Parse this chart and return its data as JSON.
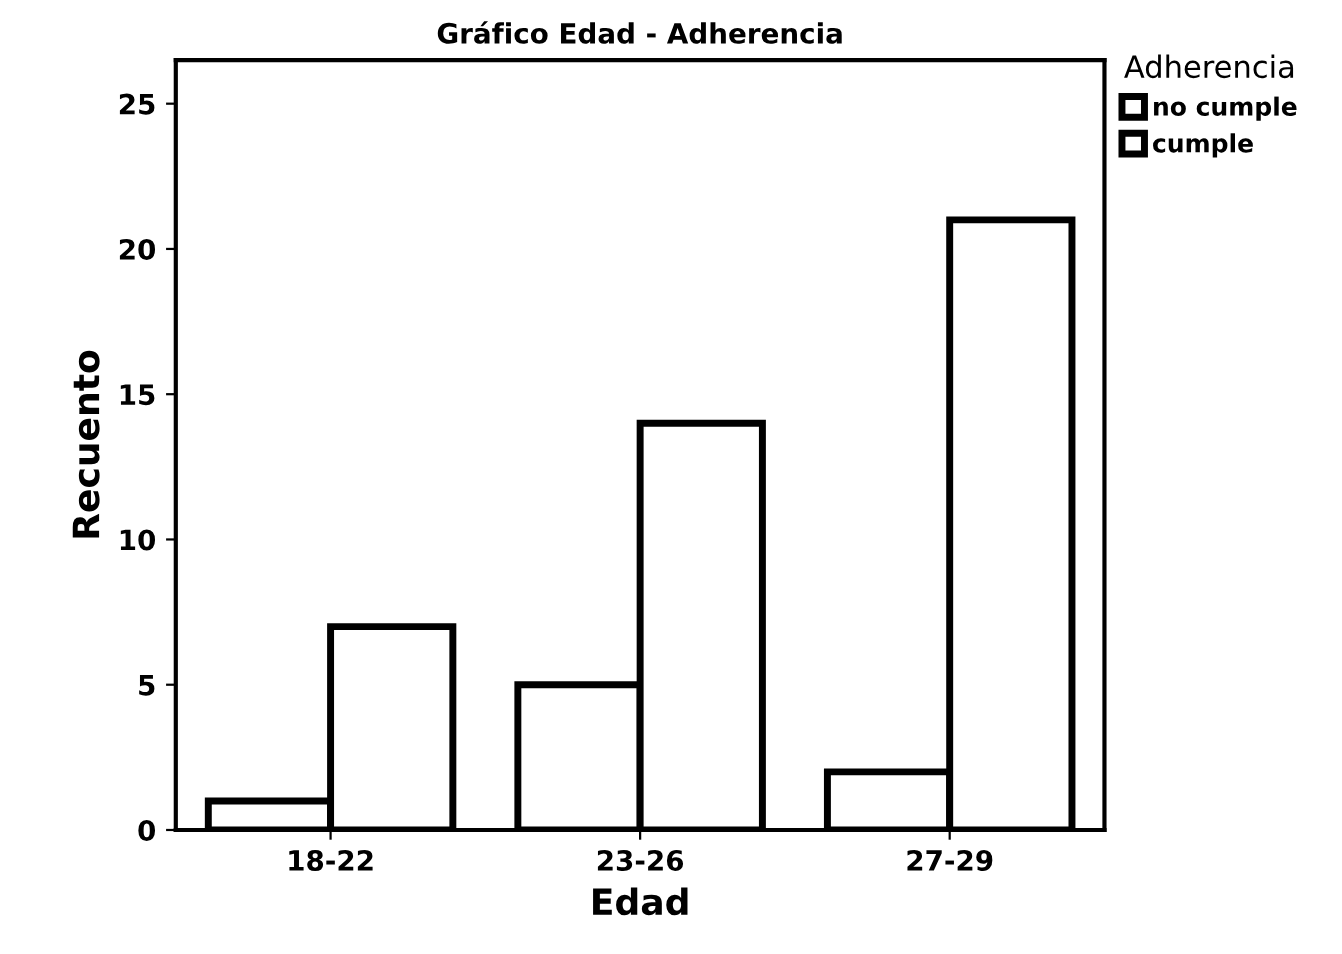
{
  "chart_data": {
    "type": "bar",
    "title": "Gráfico Edad - Adherencia",
    "xlabel": "Edad",
    "ylabel": "Recuento",
    "legend_title": "Adherencia",
    "categories": [
      "18-22",
      "23-26",
      "27-29"
    ],
    "series": [
      {
        "name": "no cumple",
        "color": "#ffffff",
        "values": [
          1,
          5,
          2
        ]
      },
      {
        "name": "cumple",
        "color": "#ffffff",
        "values": [
          7,
          14,
          21
        ]
      }
    ],
    "ylim": [
      0,
      26.5
    ],
    "yticks": [
      0,
      5,
      10,
      15,
      20,
      25
    ],
    "grid": false,
    "legend": "top right"
  }
}
